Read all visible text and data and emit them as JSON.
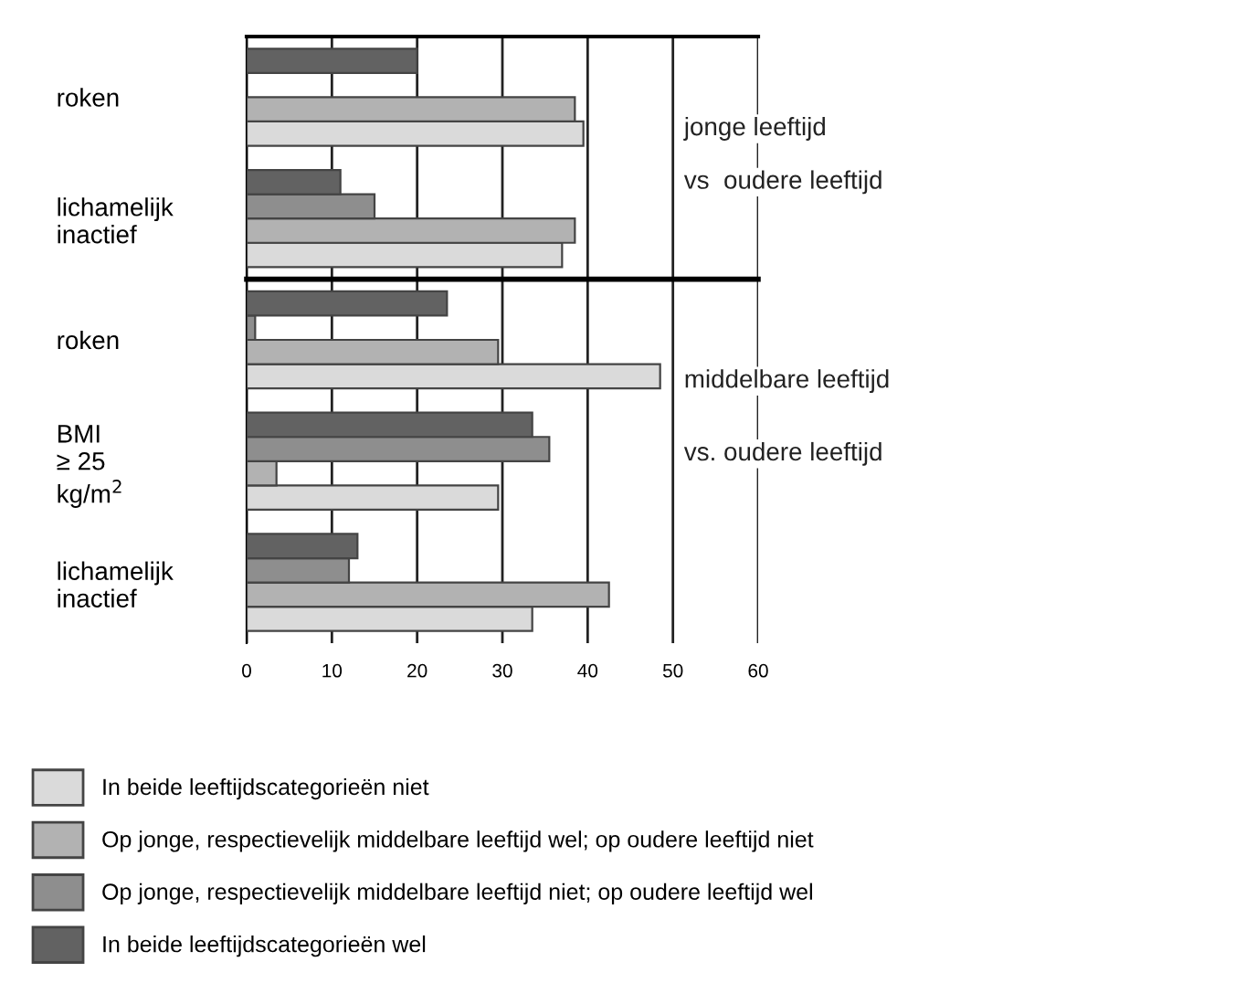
{
  "chart_data": [
    {
      "type": "bar",
      "orientation": "horizontal",
      "categories": [
        "roken",
        "lichamelijk\ninactief"
      ],
      "xlim": [
        0,
        60
      ],
      "xticks": [
        0,
        10,
        20,
        30,
        40,
        50,
        60
      ],
      "grid": "x",
      "tick_labels": "y",
      "annotations": [
        "jonge leeftijd",
        "vs  oudere leeftijd"
      ],
      "series": [
        {
          "color": "#dadada",
          "values": [
            39.5,
            37
          ]
        },
        {
          "color": "#b2b2b2",
          "values": [
            38.5,
            38.5
          ]
        },
        {
          "color": "#8e8e8e",
          "values": [
            null,
            15
          ]
        },
        {
          "color": "#626262",
          "values": [
            20,
            11
          ]
        }
      ]
    },
    {
      "type": "bar",
      "orientation": "horizontal",
      "categories": [
        "roken",
        "BMI\n≥ 25\nkg/m$^{2}$",
        "lichamelijk\ninactief"
      ],
      "xlim": [
        0,
        60
      ],
      "xticks": [
        0,
        10,
        20,
        30,
        40,
        50,
        60
      ],
      "grid": "x",
      "legend": "bottom",
      "annotations": [
        "middelbare leeftijd",
        "vs. oudere leeftijd"
      ],
      "series": [
        {
          "name": "In beide leeftijdscategorieën niet",
          "color": "#dadada",
          "values": [
            48.5,
            29.5,
            33.5
          ]
        },
        {
          "name": "Op jonge, respectievelijk middelbare leeftijd wel; op oudere leeftijd niet",
          "color": "#b2b2b2",
          "values": [
            29.5,
            3.5,
            42.5
          ]
        },
        {
          "name": "Op jonge, respectievelijk middelbare leeftijd niet; op oudere leeftijd wel",
          "color": "#8e8e8e",
          "values": [
            1,
            35.5,
            12
          ]
        },
        {
          "name": "In beide leeftijdscategorieën wel",
          "color": "#626262",
          "values": [
            23.5,
            33.5,
            13
          ]
        }
      ]
    }
  ]
}
